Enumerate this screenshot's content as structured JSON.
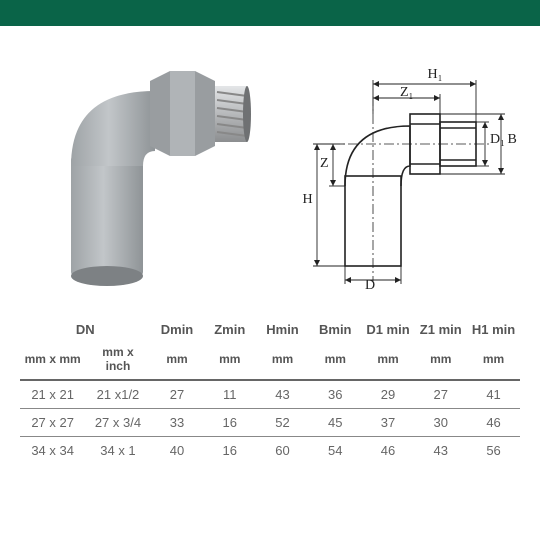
{
  "colors": {
    "header_bg": "#0a6448",
    "text": "#555555",
    "rule": "#888888",
    "rule_heavy": "#666666",
    "photo_body": "#a9aeb1",
    "photo_metal": "#c7c9cb",
    "diagram_stroke": "#222222"
  },
  "diagram": {
    "labels": {
      "H1": "H₁",
      "Z1": "Z₁",
      "D1": "D₁",
      "B": "B",
      "Z": "Z",
      "H": "H",
      "D": "D"
    }
  },
  "table": {
    "headers": [
      "DN",
      "",
      "Dmin",
      "Zmin",
      "Hmin",
      "Bmin",
      "D1 min",
      "Z1 min",
      "H1 min"
    ],
    "dn_colspan_header": "DN",
    "units": [
      "mm x mm",
      "mm x inch",
      "mm",
      "mm",
      "mm",
      "mm",
      "mm",
      "mm",
      "mm"
    ],
    "rows": [
      [
        "21 x 21",
        "21 x1/2",
        "27",
        "11",
        "43",
        "36",
        "29",
        "27",
        "41"
      ],
      [
        "27 x 27",
        "27 x 3/4",
        "33",
        "16",
        "52",
        "45",
        "37",
        "30",
        "46"
      ],
      [
        "34 x 34",
        "34 x 1",
        "40",
        "16",
        "60",
        "54",
        "46",
        "43",
        "56"
      ]
    ],
    "col_widths_pct": [
      13,
      13,
      10.5,
      10.5,
      10.5,
      10.5,
      10.5,
      10.5,
      10.5
    ]
  }
}
